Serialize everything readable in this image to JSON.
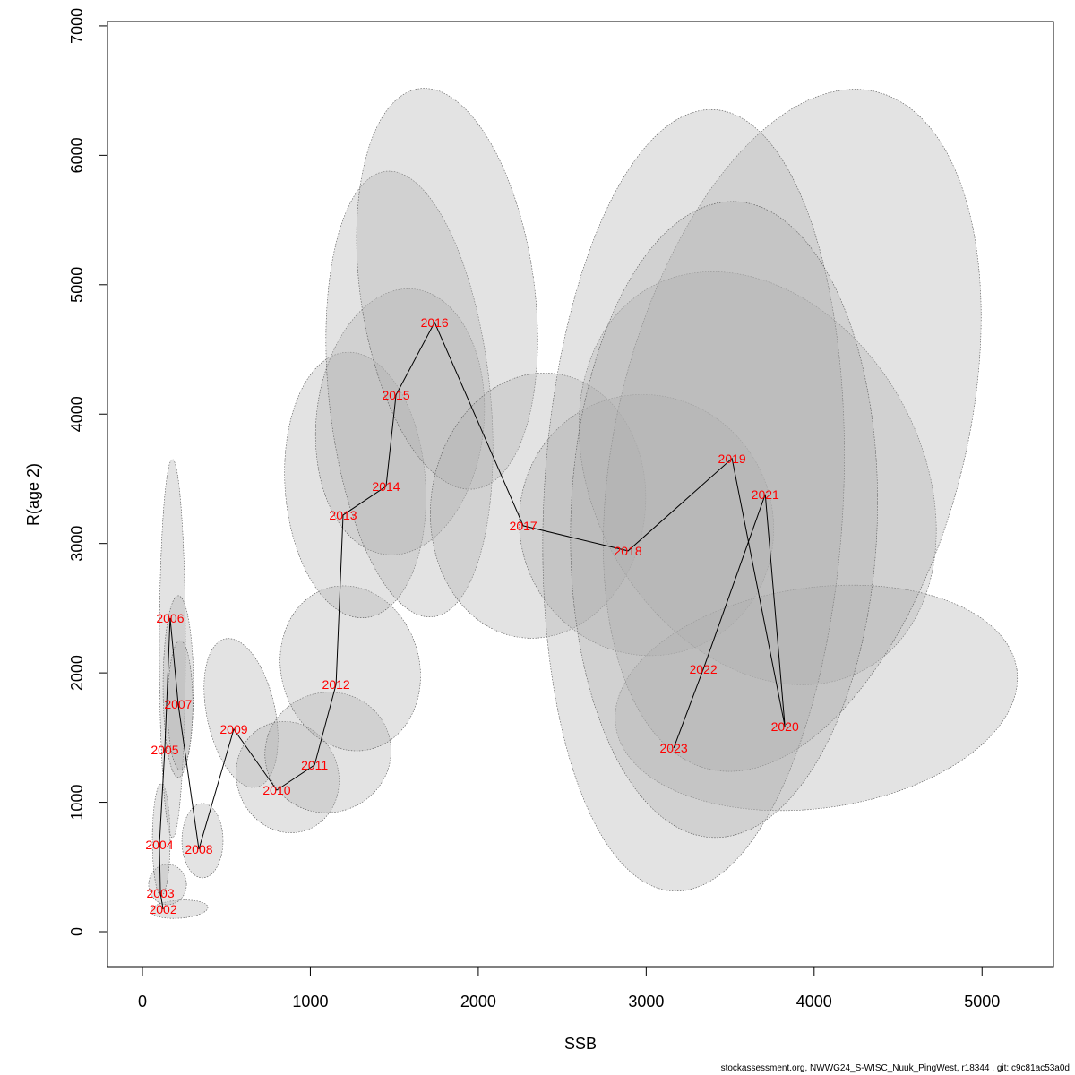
{
  "chart_data": {
    "type": "scatter",
    "xlabel": "SSB",
    "ylabel": "R(age 2)",
    "xlim": [
      -210,
      5430
    ],
    "ylim": [
      -270,
      7030
    ],
    "xticks": [
      0,
      1000,
      2000,
      3000,
      4000,
      5000
    ],
    "yticks": [
      0,
      1000,
      2000,
      3000,
      4000,
      5000,
      6000,
      7000
    ],
    "label_color": "#ff0000",
    "ellipse_fill": "#b0b0b0",
    "points": [
      {
        "year": "2002",
        "ssb": 123,
        "r": 173,
        "ci_ssb": [
          48,
          390
        ],
        "ci_r": [
          104,
          243
        ]
      },
      {
        "year": "2003",
        "ssb": 107,
        "r": 298,
        "ci_ssb": [
          37,
          262
        ],
        "ci_r": [
          208,
          520
        ]
      },
      {
        "year": "2004",
        "ssb": 101,
        "r": 672,
        "ci_ssb": [
          59,
          165
        ],
        "ci_r": [
          277,
          1143
        ]
      },
      {
        "year": "2005",
        "ssb": 133,
        "r": 1406,
        "ci_ssb": [
          101,
          256
        ],
        "ci_r": [
          727,
          3650
        ]
      },
      {
        "year": "2006",
        "ssb": 165,
        "r": 2424,
        "ci_ssb": [
          123,
          304
        ],
        "ci_r": [
          1192,
          2597
        ]
      },
      {
        "year": "2007",
        "ssb": 213,
        "r": 1759,
        "ci_ssb": [
          150,
          300
        ],
        "ci_r": [
          1250,
          2250
        ]
      },
      {
        "year": "2008",
        "ssb": 336,
        "r": 637,
        "ci_ssb": [
          235,
          480
        ],
        "ci_r": [
          416,
          991
        ]
      },
      {
        "year": "2009",
        "ssb": 544,
        "r": 1565,
        "ci_ssb": [
          368,
          806
        ],
        "ci_r": [
          1060,
          2320
        ]
      },
      {
        "year": "2010",
        "ssb": 800,
        "r": 1094,
        "ci_ssb": [
          539,
          1190
        ],
        "ci_r": [
          727,
          1662
        ]
      },
      {
        "year": "2011",
        "ssb": 1025,
        "r": 1288,
        "ci_ssb": [
          700,
          1510
        ],
        "ci_r": [
          886,
          1884
        ]
      },
      {
        "year": "2012",
        "ssb": 1153,
        "r": 1911,
        "ci_ssb": [
          795,
          1681
        ],
        "ci_r": [
          1343,
          2728
        ]
      },
      {
        "year": "2013",
        "ssb": 1195,
        "r": 3220,
        "ci_ssb": [
          849,
          1686
        ],
        "ci_r": [
          2424,
          4480
        ]
      },
      {
        "year": "2014",
        "ssb": 1451,
        "r": 3442,
        "ci_ssb": [
          1035,
          2033
        ],
        "ci_r": [
          2909,
          4972
        ]
      },
      {
        "year": "2015",
        "ssb": 1510,
        "r": 4148,
        "ci_ssb": [
          1110,
          2070
        ],
        "ci_r": [
          2424,
          5886
        ]
      },
      {
        "year": "2016",
        "ssb": 1740,
        "r": 4709,
        "ci_ssb": [
          1297,
          2332
        ],
        "ci_r": [
          3407,
          6530
        ]
      },
      {
        "year": "2017",
        "ssb": 2268,
        "r": 3137,
        "ci_ssb": [
          1718,
          2994
        ],
        "ci_r": [
          2265,
          4321
        ]
      },
      {
        "year": "2018",
        "ssb": 2892,
        "r": 2943,
        "ci_ssb": [
          2193,
          3810
        ],
        "ci_r": [
          2050,
          4235
        ]
      },
      {
        "year": "2019",
        "ssb": 3511,
        "r": 3657,
        "ci_ssb": [
          2620,
          4707
        ],
        "ci_r": [
          1683,
          5325
        ]
      },
      {
        "year": "2020",
        "ssb": 3826,
        "r": 1586,
        "ci_ssb": [
          2807,
          5219
        ],
        "ci_r": [
          955,
          2659
        ]
      },
      {
        "year": "2021",
        "ssb": 3709,
        "r": 3380,
        "ci_ssb": [
          2754,
          4985
        ],
        "ci_r": [
          976,
          6773
        ]
      },
      {
        "year": "2022",
        "ssb": 3340,
        "r": 2029,
        "ci_ssb": [
          2391,
          4173
        ],
        "ci_r": [
          310,
          6357
        ]
      },
      {
        "year": "2023",
        "ssb": 3164,
        "r": 1420,
        "ci_ssb": [
          2551,
          4376
        ],
        "ci_r": [
          727,
          5644
        ]
      }
    ]
  },
  "footer": "stockassessment.org, NWWG24_S-WISC_Nuuk_PingWest, r18344 , git: c9c81ac53a0d"
}
